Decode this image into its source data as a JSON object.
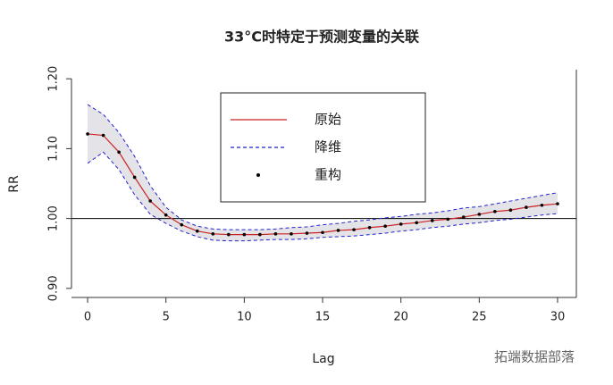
{
  "chart_data": {
    "type": "line",
    "title": "33°C时特定于预测变量的关联",
    "x_label": "Lag",
    "y_label": "RR",
    "x": [
      0,
      1,
      2,
      3,
      4,
      5,
      6,
      7,
      8,
      9,
      10,
      11,
      12,
      13,
      14,
      15,
      16,
      17,
      18,
      19,
      20,
      21,
      22,
      23,
      24,
      25,
      26,
      27,
      28,
      29,
      30
    ],
    "series": [
      {
        "name": "原始",
        "color": "#cc2222",
        "style": "solid",
        "values": [
          1.121,
          1.119,
          1.095,
          1.059,
          1.025,
          1.005,
          0.991,
          0.982,
          0.978,
          0.977,
          0.977,
          0.977,
          0.978,
          0.978,
          0.979,
          0.98,
          0.983,
          0.984,
          0.987,
          0.989,
          0.992,
          0.994,
          0.997,
          0.999,
          1.002,
          1.006,
          1.01,
          1.012,
          1.016,
          1.019,
          1.021
        ]
      },
      {
        "name": "降维",
        "color": "#2222cc",
        "style": "dashed",
        "values": [
          1.163,
          1.149,
          1.123,
          1.089,
          1.047,
          1.016,
          0.998,
          0.989,
          0.985,
          0.984,
          0.984,
          0.984,
          0.985,
          0.987,
          0.988,
          0.991,
          0.993,
          0.996,
          0.998,
          1.001,
          1.003,
          1.006,
          1.008,
          1.011,
          1.015,
          1.017,
          1.021,
          1.025,
          1.029,
          1.033,
          1.037
        ],
        "lower": [
          1.079,
          1.095,
          1.07,
          1.034,
          1.006,
          0.993,
          0.982,
          0.974,
          0.969,
          0.968,
          0.968,
          0.969,
          0.97,
          0.97,
          0.971,
          0.973,
          0.974,
          0.975,
          0.977,
          0.979,
          0.982,
          0.984,
          0.987,
          0.989,
          0.992,
          0.994,
          0.997,
          0.999,
          1.002,
          1.005,
          1.007
        ]
      },
      {
        "name": "重构",
        "color": "#000000",
        "style": "points",
        "values": [
          1.121,
          1.119,
          1.095,
          1.059,
          1.025,
          1.005,
          0.991,
          0.982,
          0.978,
          0.977,
          0.977,
          0.977,
          0.978,
          0.978,
          0.979,
          0.98,
          0.983,
          0.984,
          0.987,
          0.989,
          0.992,
          0.994,
          0.997,
          0.999,
          1.002,
          1.006,
          1.01,
          1.012,
          1.016,
          1.019,
          1.021
        ]
      }
    ],
    "band_color": "#e3e3e8",
    "reference_line": 1.0,
    "xlim": [
      -1.03,
      31.2
    ],
    "ylim": [
      0.887,
      1.213
    ],
    "xticks": [
      0,
      5,
      10,
      15,
      20,
      25,
      30
    ],
    "yticks": [
      {
        "value": 0.9,
        "label": "0.90"
      },
      {
        "value": 1.0,
        "label": "1.00"
      },
      {
        "value": 1.1,
        "label": "1.10"
      },
      {
        "value": 1.2,
        "label": "1.20"
      }
    ],
    "watermark": "拓端数据部落"
  }
}
